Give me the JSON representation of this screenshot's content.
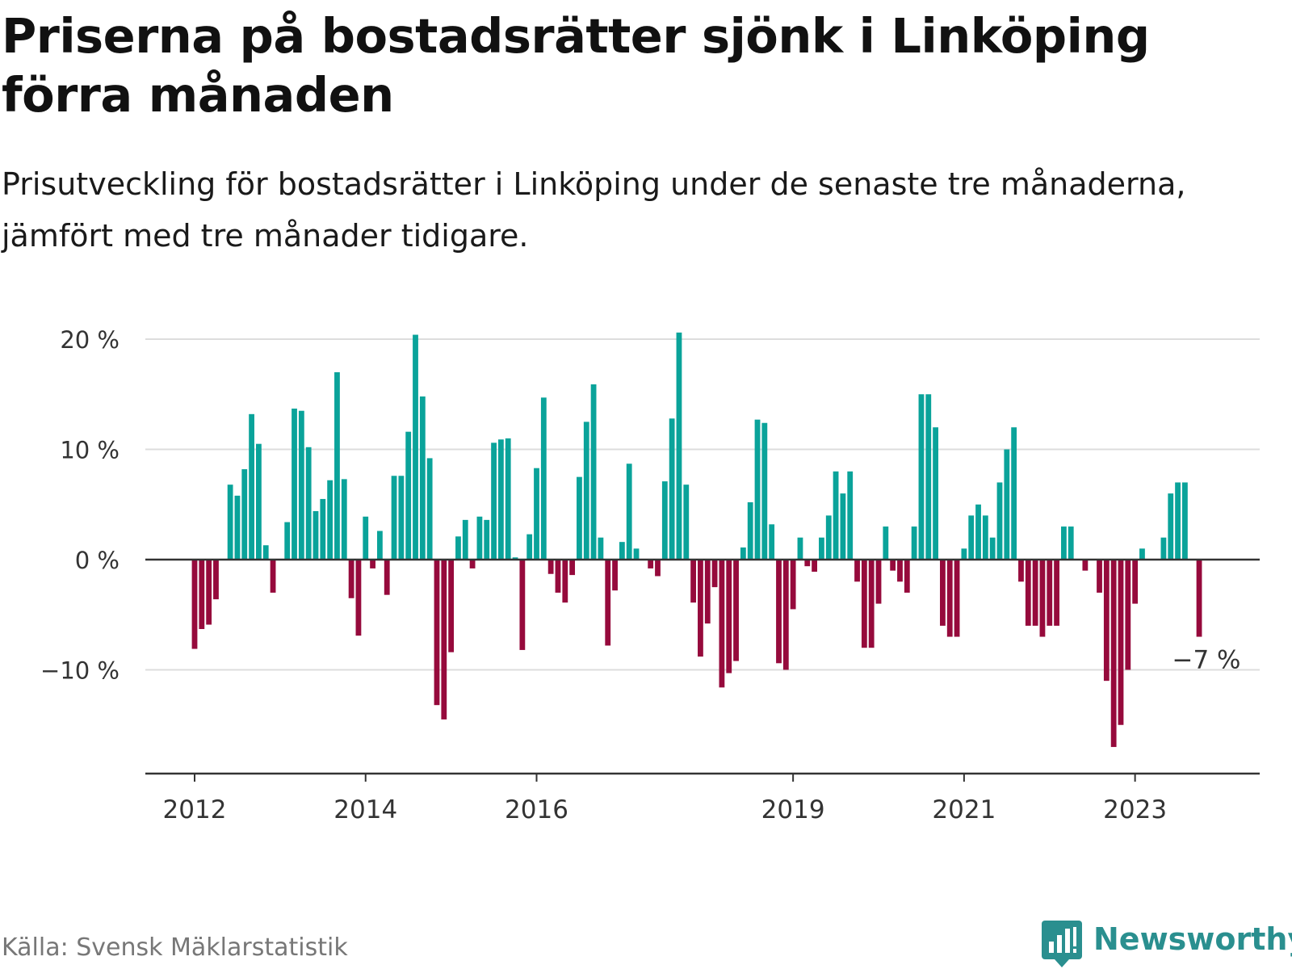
{
  "title": "Priserna på bostadsrätter sjönk i Linköping förra månaden",
  "subtitle": "Prisutveckling för bostadsrätter i Linköping under de senaste tre månaderna, jämfört med tre månader tidigare.",
  "source": "Källa: Svensk Mäklarstatistik",
  "brand": "Newsworthy",
  "colors": {
    "positive": "#0aa39a",
    "negative": "#960a3c",
    "grid": "#dddddd",
    "axis": "#333333",
    "brand": "#2a8f8f"
  },
  "chart_data": {
    "type": "bar",
    "ylim": [
      -19.5,
      20.5
    ],
    "y_ticks": [
      20,
      10,
      0,
      -10
    ],
    "y_tick_labels": [
      "20 %",
      "10 %",
      "0 %",
      "−10 %"
    ],
    "x_labels": [
      {
        "label": "2012",
        "index": 0
      },
      {
        "label": "2014",
        "index": 24
      },
      {
        "label": "2016",
        "index": 48
      },
      {
        "label": "2019",
        "index": 84
      },
      {
        "label": "2021",
        "index": 108
      },
      {
        "label": "2023",
        "index": 132
      }
    ],
    "start": "2012-01",
    "values": [
      -8.1,
      -6.3,
      -5.9,
      -3.6,
      0.0,
      6.8,
      5.8,
      8.2,
      13.2,
      10.5,
      1.3,
      -3.0,
      0.0,
      3.4,
      13.7,
      13.5,
      10.2,
      4.4,
      5.5,
      7.2,
      17.0,
      7.3,
      -3.5,
      -6.9,
      3.9,
      -0.8,
      2.6,
      -3.2,
      7.6,
      7.6,
      11.6,
      20.4,
      14.8,
      9.2,
      -13.2,
      -14.5,
      -8.4,
      2.1,
      3.6,
      -0.8,
      3.9,
      3.6,
      10.6,
      10.9,
      11.0,
      0.2,
      -8.2,
      2.3,
      8.3,
      14.7,
      -1.3,
      -3.0,
      -3.9,
      -1.4,
      7.5,
      12.5,
      15.9,
      2.0,
      -7.8,
      -2.8,
      1.6,
      8.7,
      1.0,
      0.0,
      -0.8,
      -1.5,
      7.1,
      12.8,
      20.6,
      6.8,
      -3.9,
      -8.8,
      -5.8,
      -2.5,
      -11.6,
      -10.3,
      -9.2,
      1.1,
      5.2,
      12.7,
      12.4,
      3.2,
      -9.4,
      -10.0,
      -4.5,
      2.0,
      -0.6,
      -1.1,
      2.0,
      4.0,
      8.0,
      6.0,
      8.0,
      -2.0,
      -8.0,
      -8.0,
      -4.0,
      3.0,
      -1.0,
      -2.0,
      -3.0,
      3.0,
      15.0,
      15.0,
      12.0,
      -6.0,
      -7.0,
      -7.0,
      1.0,
      4.0,
      5.0,
      4.0,
      2.0,
      7.0,
      10.0,
      12.0,
      -2.0,
      -6.0,
      -6.0,
      -7.0,
      -6.0,
      -6.0,
      3.0,
      3.0,
      0.0,
      -1.0,
      0.0,
      -3.0,
      -11.0,
      -17.0,
      -15.0,
      -10.0,
      -4.0,
      1.0,
      0.0,
      0.0,
      2.0,
      6.0,
      7.0,
      7.0,
      0.0,
      -7.0
    ],
    "annotation": {
      "index": 141,
      "label": "−7 %"
    },
    "grid": true
  }
}
